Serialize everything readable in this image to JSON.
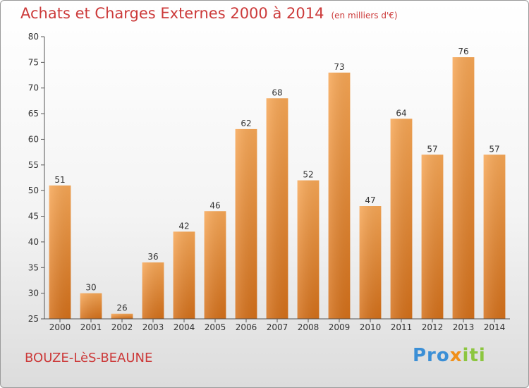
{
  "header": {
    "title": "Achats et Charges Externes 2000 à 2014",
    "unit": "(en milliers d'€)"
  },
  "footer": {
    "commune": "BOUZE-LèS-BEAUNE",
    "brand_parts": [
      "Pro",
      "x",
      "iti"
    ]
  },
  "colors": {
    "bar_top": "#f7a756",
    "bar_bottom": "#d4701a",
    "title": "#cc3a3a"
  },
  "chart_data": {
    "type": "bar",
    "title": "Achats et Charges Externes 2000 à 2014",
    "subtitle": "(en milliers d'€)",
    "categories": [
      "2000",
      "2001",
      "2002",
      "2003",
      "2004",
      "2005",
      "2006",
      "2007",
      "2008",
      "2009",
      "2010",
      "2011",
      "2012",
      "2013",
      "2014"
    ],
    "values": [
      51,
      30,
      26,
      36,
      42,
      46,
      62,
      68,
      52,
      73,
      47,
      64,
      57,
      76,
      57
    ],
    "ylim": [
      25,
      80
    ],
    "yticks": [
      25,
      30,
      35,
      40,
      45,
      50,
      55,
      60,
      65,
      70,
      75,
      80
    ],
    "grid": false,
    "legend": "none"
  }
}
